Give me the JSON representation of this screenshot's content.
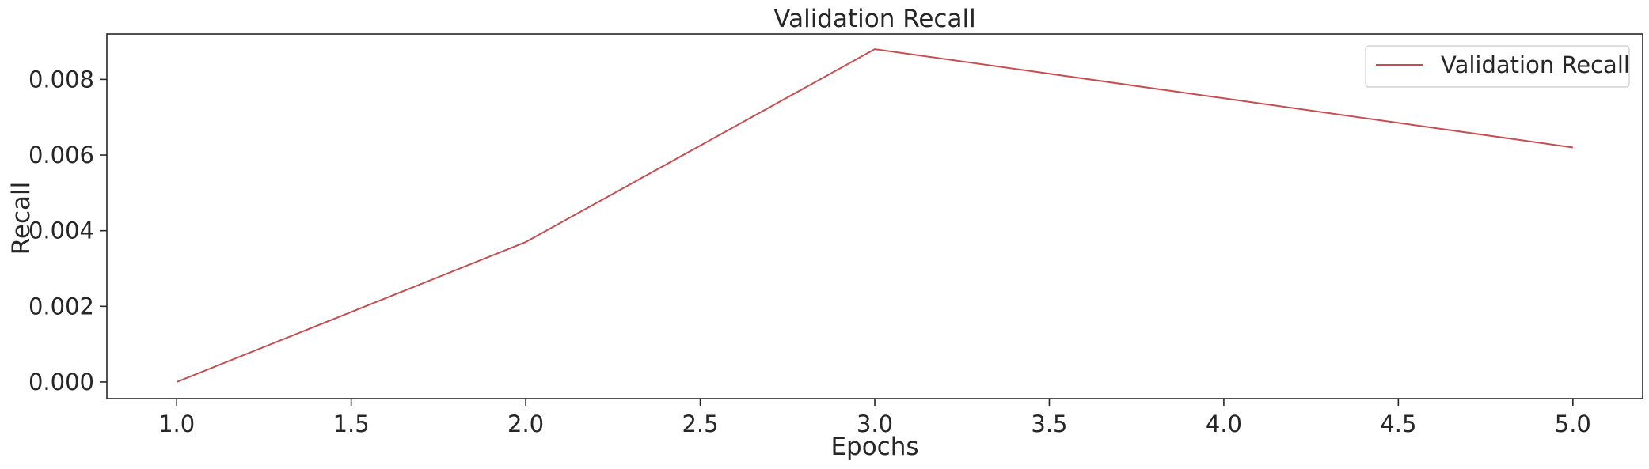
{
  "chart_data": {
    "type": "line",
    "title": "Validation Recall",
    "xlabel": "Epochs",
    "ylabel": "Recall",
    "x": [
      1,
      2,
      3,
      4,
      5
    ],
    "series": [
      {
        "name": "Validation Recall",
        "color": "#c44e52",
        "values": [
          0.0,
          0.0037,
          0.0088,
          0.0075,
          0.0062
        ]
      }
    ],
    "xlim": [
      0.8,
      5.2
    ],
    "ylim": [
      -0.00044,
      0.0092
    ],
    "xticks": [
      1.0,
      1.5,
      2.0,
      2.5,
      3.0,
      3.5,
      4.0,
      4.5,
      5.0
    ],
    "xtick_labels": [
      "1.0",
      "1.5",
      "2.0",
      "2.5",
      "3.0",
      "3.5",
      "4.0",
      "4.5",
      "5.0"
    ],
    "yticks": [
      0.0,
      0.002,
      0.004,
      0.006,
      0.008
    ],
    "ytick_labels": [
      "0.000",
      "0.002",
      "0.004",
      "0.006",
      "0.008"
    ],
    "grid": false,
    "legend_position": "top-right"
  }
}
